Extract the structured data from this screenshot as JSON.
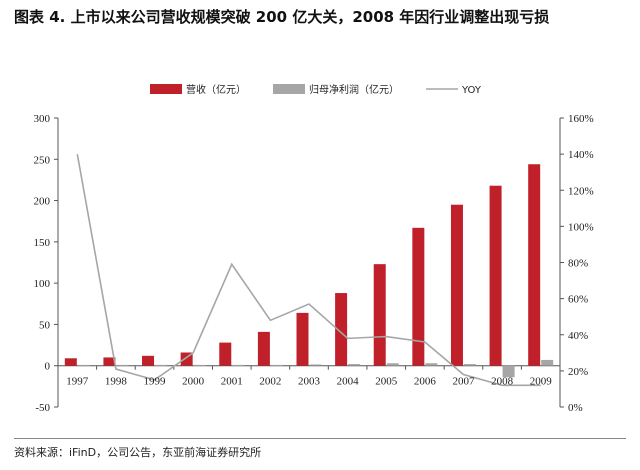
{
  "figure": {
    "title": "图表 4.  上市以来公司营收规模突破 200 亿大关，2008 年因行业调整出现亏损",
    "source": "资料来源：iFinD，公司公告，东亚前海证券研究所"
  },
  "colors": {
    "revenue": "#c0202a",
    "profit": "#a6a6a6",
    "yoy": "#a6a6a6",
    "axis": "#555555"
  },
  "chart_data": {
    "type": "bar",
    "categories": [
      "1997",
      "1998",
      "1999",
      "2000",
      "2001",
      "2002",
      "2003",
      "2004",
      "2005",
      "2006",
      "2007",
      "2008",
      "2009"
    ],
    "series": [
      {
        "name": "营收（亿元）",
        "type": "bar",
        "axis": "left",
        "values": [
          9,
          10,
          12,
          16,
          28,
          41,
          64,
          88,
          123,
          167,
          195,
          218,
          244
        ]
      },
      {
        "name": "归母净利润（亿元）",
        "type": "bar",
        "axis": "left",
        "values": [
          1,
          1,
          1,
          1,
          1,
          1,
          1.5,
          2,
          3,
          3,
          2,
          -14,
          7
        ]
      },
      {
        "name": "YOY",
        "type": "line",
        "axis": "right",
        "values": [
          1.4,
          0.21,
          0.15,
          0.3,
          0.79,
          0.48,
          0.57,
          0.38,
          0.39,
          0.36,
          0.18,
          0.12,
          0.12
        ]
      }
    ],
    "left_axis": {
      "min": -50,
      "max": 300,
      "ticks": [
        "-50",
        "0",
        "50",
        "100",
        "150",
        "200",
        "250",
        "300"
      ]
    },
    "right_axis": {
      "min": 0,
      "max": 1.6,
      "ticks": [
        "0%",
        "20%",
        "40%",
        "60%",
        "80%",
        "100%",
        "120%",
        "140%",
        "160%"
      ]
    },
    "legend_position": "top-center",
    "grid": false
  }
}
